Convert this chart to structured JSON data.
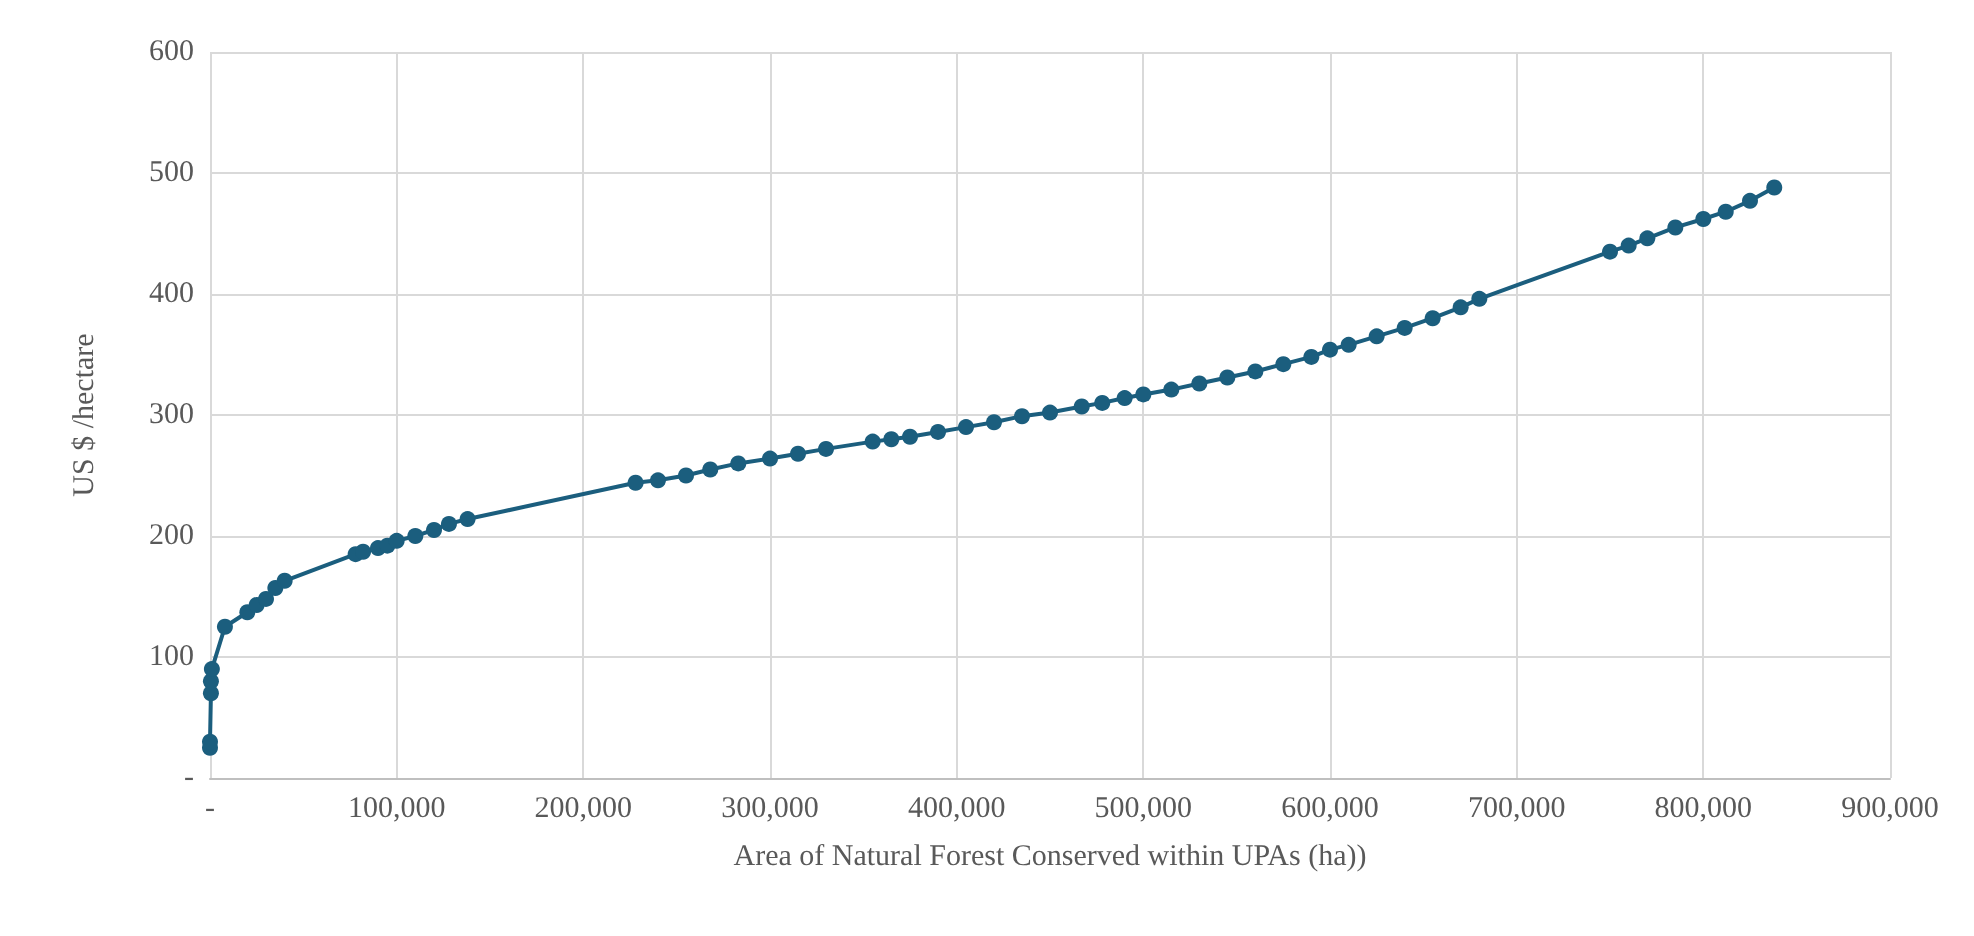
{
  "chart_data": {
    "type": "line",
    "xlabel": "Area of Natural Forest Conserved within UPAs (ha))",
    "ylabel": "US $ /hectare",
    "x": [
      0,
      0,
      500,
      500,
      1000,
      8000,
      20000,
      25000,
      30000,
      35000,
      40000,
      78000,
      82000,
      90000,
      95000,
      100000,
      110000,
      120000,
      128000,
      138000,
      228000,
      240000,
      255000,
      268000,
      283000,
      300000,
      315000,
      330000,
      355000,
      365000,
      375000,
      390000,
      405000,
      420000,
      435000,
      450000,
      467000,
      478000,
      490000,
      500000,
      515000,
      530000,
      545000,
      560000,
      575000,
      590000,
      600000,
      610000,
      625000,
      640000,
      655000,
      670000,
      680000,
      750000,
      760000,
      770000,
      785000,
      800000,
      812000,
      825000,
      838000
    ],
    "series": [
      {
        "color": "#1b5e7e",
        "values": [
          25,
          30,
          70,
          80,
          90,
          125,
          137,
          143,
          148,
          157,
          163,
          185,
          187,
          190,
          192,
          196,
          200,
          205,
          210,
          214,
          244,
          246,
          250,
          255,
          260,
          264,
          268,
          272,
          278,
          280,
          282,
          286,
          290,
          294,
          299,
          302,
          307,
          310,
          314,
          317,
          321,
          326,
          331,
          336,
          342,
          348,
          354,
          358,
          365,
          372,
          380,
          389,
          396,
          435,
          440,
          446,
          455,
          462,
          468,
          477,
          488
        ]
      }
    ],
    "xlim": [
      0,
      900000
    ],
    "xticks": [
      {
        "value": 0,
        "label": "-"
      },
      {
        "value": 100000,
        "label": "100,000"
      },
      {
        "value": 200000,
        "label": "200,000"
      },
      {
        "value": 300000,
        "label": "300,000"
      },
      {
        "value": 400000,
        "label": "400,000"
      },
      {
        "value": 500000,
        "label": "500,000"
      },
      {
        "value": 600000,
        "label": "600,000"
      },
      {
        "value": 700000,
        "label": "700,000"
      },
      {
        "value": 800000,
        "label": "800,000"
      },
      {
        "value": 900000,
        "label": "900,000"
      }
    ],
    "ylim": [
      0,
      600
    ],
    "yticks": [
      {
        "value": 0,
        "label": "-"
      },
      100,
      200,
      300,
      400,
      500,
      600
    ],
    "grid": true,
    "marker": "circle",
    "line_style": "solid"
  }
}
